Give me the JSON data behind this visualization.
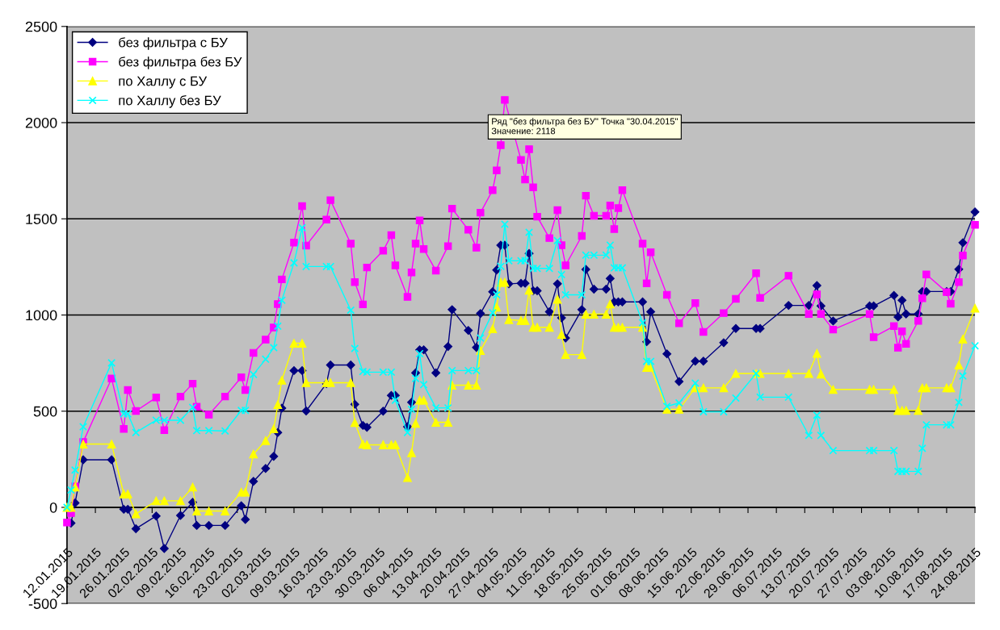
{
  "chart_data": {
    "type": "line",
    "x": [
      "2015-01-12",
      "2015-01-13",
      "2015-01-14",
      "2015-01-16",
      "2015-01-23",
      "2015-01-26",
      "2015-01-27",
      "2015-01-29",
      "2015-02-03",
      "2015-02-05",
      "2015-02-09",
      "2015-02-12",
      "2015-02-13",
      "2015-02-16",
      "2015-02-20",
      "2015-02-24",
      "2015-02-25",
      "2015-02-27",
      "2015-03-02",
      "2015-03-04",
      "2015-03-05",
      "2015-03-06",
      "2015-03-09",
      "2015-03-11",
      "2015-03-12",
      "2015-03-17",
      "2015-03-18",
      "2015-03-23",
      "2015-03-24",
      "2015-03-26",
      "2015-03-27",
      "2015-03-31",
      "2015-04-02",
      "2015-04-03",
      "2015-04-06",
      "2015-04-07",
      "2015-04-08",
      "2015-04-09",
      "2015-04-10",
      "2015-04-13",
      "2015-04-16",
      "2015-04-17",
      "2015-04-21",
      "2015-04-23",
      "2015-04-24",
      "2015-04-27",
      "2015-04-28",
      "2015-04-29",
      "2015-04-30",
      "2015-05-01",
      "2015-05-04",
      "2015-05-05",
      "2015-05-06",
      "2015-05-07",
      "2015-05-08",
      "2015-05-11",
      "2015-05-13",
      "2015-05-14",
      "2015-05-15",
      "2015-05-19",
      "2015-05-20",
      "2015-05-22",
      "2015-05-25",
      "2015-05-26",
      "2015-05-27",
      "2015-05-28",
      "2015-05-29",
      "2015-06-03",
      "2015-06-04",
      "2015-06-05",
      "2015-06-09",
      "2015-06-12",
      "2015-06-16",
      "2015-06-18",
      "2015-06-23",
      "2015-06-26",
      "2015-07-01",
      "2015-07-02",
      "2015-07-09",
      "2015-07-14",
      "2015-07-16",
      "2015-07-17",
      "2015-07-20",
      "2015-07-29",
      "2015-07-30",
      "2015-08-04",
      "2015-08-05",
      "2015-08-06",
      "2015-08-07",
      "2015-08-10",
      "2015-08-11",
      "2015-08-12",
      "2015-08-17",
      "2015-08-18",
      "2015-08-20",
      "2015-08-21",
      "2015-08-24"
    ],
    "series": [
      {
        "name": "без фильтра с БУ",
        "color": "#000080",
        "marker": "diamond",
        "values": [
          null,
          -82,
          23,
          247,
          247,
          -10,
          -10,
          -111,
          -45,
          -214,
          -42,
          26,
          -94,
          -94,
          -94,
          8,
          -63,
          135,
          202,
          265,
          389,
          516,
          711,
          711,
          501,
          643,
          740,
          740,
          536,
          426,
          416,
          500,
          582,
          582,
          419,
          546,
          699,
          819,
          819,
          699,
          836,
          1028,
          920,
          831,
          1008,
          1121,
          1234,
          1363,
          1363,
          1162,
          1165,
          1165,
          1320,
          1126,
          1126,
          1017,
          1162,
          985,
          880,
          1028,
          1237,
          1134,
          1134,
          1190,
          1068,
          1068,
          1068,
          1068,
          861,
          1017,
          798,
          654,
          760,
          760,
          856,
          930,
          930,
          930,
          1050,
          1050,
          1153,
          1047,
          969,
          1047,
          1047,
          1102,
          990,
          1077,
          1005,
          1005,
          1122,
          1122,
          1122,
          1122,
          1238,
          1376,
          1536
        ]
      },
      {
        "name": "без фильтра без БУ",
        "color": "#ff00ff",
        "marker": "square",
        "x": [
          "2015-01-12",
          "2015-01-13",
          "2015-01-14",
          "2015-01-16",
          "2015-01-23",
          "2015-01-26",
          "2015-01-27",
          "2015-01-29",
          "2015-02-03",
          "2015-02-05",
          "2015-02-09",
          "2015-02-12",
          "2015-02-13",
          "2015-02-16",
          "2015-02-20",
          "2015-02-24",
          "2015-02-25",
          "2015-02-27",
          "2015-03-02",
          "2015-03-04",
          "2015-03-05",
          "2015-03-06",
          "2015-03-09",
          "2015-03-11",
          "2015-03-12",
          "2015-03-17",
          "2015-03-18",
          "2015-03-23",
          "2015-03-24",
          "2015-03-26",
          "2015-03-27",
          "2015-03-31",
          "2015-04-02",
          "2015-04-03",
          "2015-04-06",
          "2015-04-07",
          "2015-04-08",
          "2015-04-09",
          "2015-04-10",
          "2015-04-13",
          "2015-04-16",
          "2015-04-17",
          "2015-04-21",
          "2015-04-23",
          "2015-04-24",
          "2015-04-27",
          "2015-04-28",
          "2015-04-29",
          "2015-04-30",
          "2015-05-04",
          "2015-05-05",
          "2015-05-06",
          "2015-05-07",
          "2015-05-08",
          "2015-05-11",
          "2015-05-13",
          "2015-05-14",
          "2015-05-15",
          "2015-05-19",
          "2015-05-20",
          "2015-05-22",
          "2015-05-25",
          "2015-05-26",
          "2015-05-27",
          "2015-05-28",
          "2015-05-29",
          "2015-06-03",
          "2015-06-04",
          "2015-06-05",
          "2015-06-09",
          "2015-06-12",
          "2015-06-16",
          "2015-06-18",
          "2015-06-23",
          "2015-06-26",
          "2015-07-01",
          "2015-07-02",
          "2015-07-09",
          "2015-07-14",
          "2015-07-16",
          "2015-07-17",
          "2015-07-20",
          "2015-07-29",
          "2015-07-30",
          "2015-08-04",
          "2015-08-05",
          "2015-08-06",
          "2015-08-07",
          "2015-08-10",
          "2015-08-11",
          "2015-08-12",
          "2015-08-17",
          "2015-08-18",
          "2015-08-20",
          "2015-08-21",
          "2015-08-24"
        ],
        "values": [
          -79,
          -30,
          109,
          340,
          670,
          408,
          610,
          501,
          571,
          401,
          576,
          643,
          523,
          482,
          576,
          676,
          610,
          803,
          872,
          935,
          1057,
          1185,
          1376,
          1566,
          1361,
          1496,
          1597,
          1371,
          1171,
          1055,
          1247,
          1334,
          1415,
          1258,
          1094,
          1221,
          1371,
          1492,
          1343,
          1231,
          1358,
          1553,
          1443,
          1350,
          1532,
          1649,
          1752,
          1883,
          2118,
          1806,
          1704,
          1862,
          1664,
          1511,
          1400,
          1545,
          1363,
          1258,
          1411,
          1620,
          1516,
          1516,
          1569,
          1447,
          1556,
          1649,
          1371,
          1165,
          1326,
          1105,
          957,
          1062,
          912,
          1010,
          1084,
          1217,
          1089,
          1204,
          1005,
          1107,
          1005,
          924,
          1005,
          885,
          942,
          830,
          915,
          850,
          969,
          1087,
          1211,
          1119,
          1059,
          1171,
          1309,
          1469
        ]
      },
      {
        "name": "по Халлу с БУ",
        "color": "#ffff00",
        "marker": "triangle",
        "values": [
          0,
          0,
          105,
          329,
          329,
          70,
          70,
          -34,
          34,
          34,
          34,
          105,
          -19,
          -19,
          -19,
          79,
          79,
          277,
          347,
          408,
          534,
          661,
          853,
          853,
          648,
          648,
          648,
          648,
          441,
          329,
          325,
          325,
          325,
          325,
          155,
          284,
          437,
          557,
          557,
          442,
          442,
          635,
          635,
          635,
          815,
          928,
          1041,
          1170,
          1170,
          976,
          971,
          971,
          1129,
          936,
          936,
          936,
          1081,
          899,
          794,
          794,
          1004,
          1004,
          1004,
          1057,
          936,
          936,
          936,
          936,
          727,
          727,
          510,
          510,
          621,
          621,
          621,
          696,
          696,
          696,
          696,
          696,
          800,
          693,
          613,
          613,
          613,
          613,
          504,
          504,
          504,
          504,
          621,
          621,
          621,
          621,
          740,
          875,
          1035
        ]
      },
      {
        "name": "по Халлу без БУ",
        "color": "#00ffff",
        "marker": "cross",
        "values": [
          0,
          90,
          194,
          419,
          751,
          486,
          486,
          389,
          453,
          453,
          453,
          520,
          399,
          399,
          397,
          504,
          504,
          691,
          770,
          830,
          942,
          1077,
          1271,
          1454,
          1252,
          1252,
          1252,
          1025,
          826,
          706,
          703,
          703,
          703,
          557,
          389,
          509,
          670,
          799,
          638,
          517,
          517,
          711,
          711,
          711,
          880,
          1012,
          1105,
          1253,
          1472,
          1282,
          1282,
          1282,
          1430,
          1242,
          1242,
          1242,
          1387,
          1210,
          1105,
          1105,
          1311,
          1311,
          1311,
          1363,
          1245,
          1245,
          1245,
          960,
          759,
          759,
          525,
          543,
          646,
          497,
          497,
          568,
          696,
          573,
          573,
          374,
          479,
          374,
          295,
          295,
          295,
          295,
          187,
          187,
          187,
          187,
          307,
          429,
          429,
          429,
          546,
          683,
          840
        ]
      }
    ],
    "xlim": [
      "2015-01-12",
      "2015-08-24"
    ],
    "xticks": [
      {
        "value": "2015-01-12",
        "label": "12.01.2015"
      },
      {
        "value": "2015-01-19",
        "label": "19.01.2015"
      },
      {
        "value": "2015-01-26",
        "label": "26.01.2015"
      },
      {
        "value": "2015-02-02",
        "label": "02.02.2015"
      },
      {
        "value": "2015-02-09",
        "label": "09.02.2015"
      },
      {
        "value": "2015-02-16",
        "label": "16.02.2015"
      },
      {
        "value": "2015-02-23",
        "label": "23.02.2015"
      },
      {
        "value": "2015-03-02",
        "label": "02.03.2015"
      },
      {
        "value": "2015-03-09",
        "label": "09.03.2015"
      },
      {
        "value": "2015-03-16",
        "label": "16.03.2015"
      },
      {
        "value": "2015-03-23",
        "label": "23.03.2015"
      },
      {
        "value": "2015-03-30",
        "label": "30.03.2015"
      },
      {
        "value": "2015-04-06",
        "label": "06.04.2015"
      },
      {
        "value": "2015-04-13",
        "label": "13.04.2015"
      },
      {
        "value": "2015-04-20",
        "label": "20.04.2015"
      },
      {
        "value": "2015-04-27",
        "label": "27.04.2015"
      },
      {
        "value": "2015-05-04",
        "label": "04.05.2015"
      },
      {
        "value": "2015-05-11",
        "label": "11.05.2015"
      },
      {
        "value": "2015-05-18",
        "label": "18.05.2015"
      },
      {
        "value": "2015-05-25",
        "label": "25.05.2015"
      },
      {
        "value": "2015-06-01",
        "label": "01.06.2015"
      },
      {
        "value": "2015-06-08",
        "label": "08.06.2015"
      },
      {
        "value": "2015-06-15",
        "label": "15.06.2015"
      },
      {
        "value": "2015-06-22",
        "label": "22.06.2015"
      },
      {
        "value": "2015-06-29",
        "label": "29.06.2015"
      },
      {
        "value": "2015-07-06",
        "label": "06.07.2015"
      },
      {
        "value": "2015-07-13",
        "label": "13.07.2015"
      },
      {
        "value": "2015-07-20",
        "label": "20.07.2015"
      },
      {
        "value": "2015-07-27",
        "label": "27.07.2015"
      },
      {
        "value": "2015-08-03",
        "label": "03.08.2015"
      },
      {
        "value": "2015-08-10",
        "label": "10.08.2015"
      },
      {
        "value": "2015-08-17",
        "label": "17.08.2015"
      },
      {
        "value": "2015-08-24",
        "label": "24.08.2015"
      }
    ],
    "ylim": [
      -500,
      2500
    ],
    "yticks": [
      -500,
      0,
      500,
      1000,
      1500,
      2000,
      2500
    ],
    "grid": "y",
    "legend": "top left",
    "line_style": "solid",
    "annotations": [
      {
        "text": "Ряд \"без фильтра без БУ\" Точка \"30.04.2015\"\nЗначение: 2118",
        "x": "2015-04-30",
        "y": 2118
      }
    ]
  }
}
